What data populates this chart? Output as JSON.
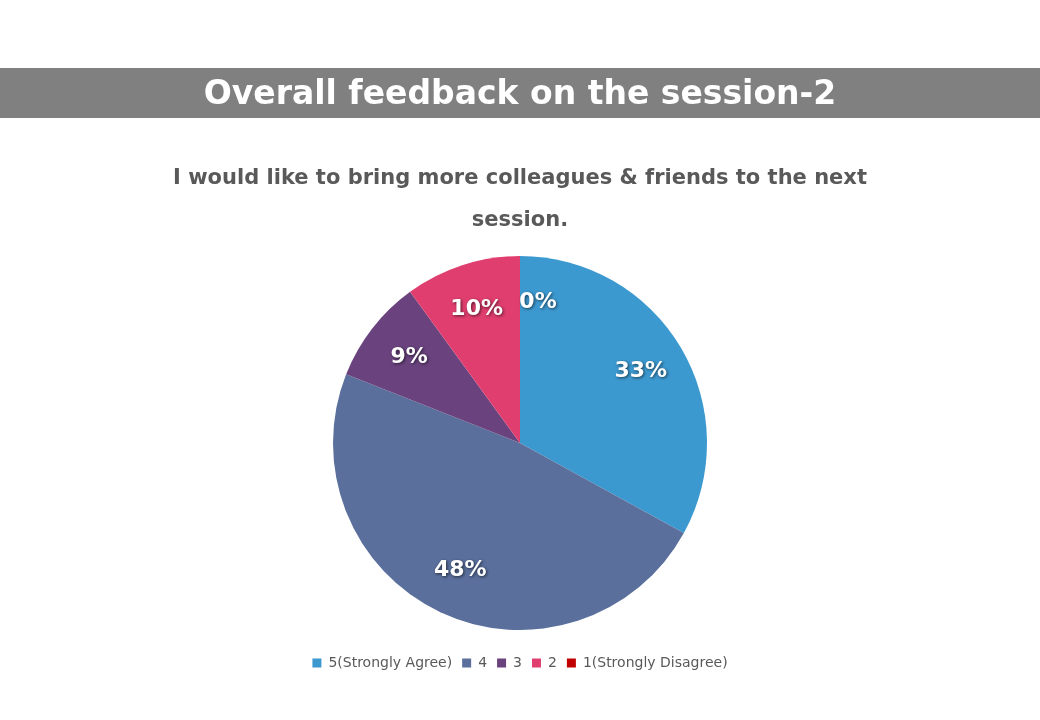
{
  "chart_data": {
    "type": "pie",
    "title": "Overall feedback on the session-2",
    "subtitle": "I would like to bring more colleagues & friends to the next session.",
    "categories": [
      "5(Strongly Agree)",
      "4",
      "3",
      "2",
      "1(Strongly Disagree)"
    ],
    "values": [
      33,
      48,
      9,
      10,
      0
    ],
    "colors": [
      "#3c99d0",
      "#5a6f9c",
      "#6a437e",
      "#e03e6e",
      "#c00000"
    ],
    "value_labels": [
      "33%",
      "48%",
      "9%",
      "10%",
      "0%"
    ],
    "legend": "bottom"
  }
}
